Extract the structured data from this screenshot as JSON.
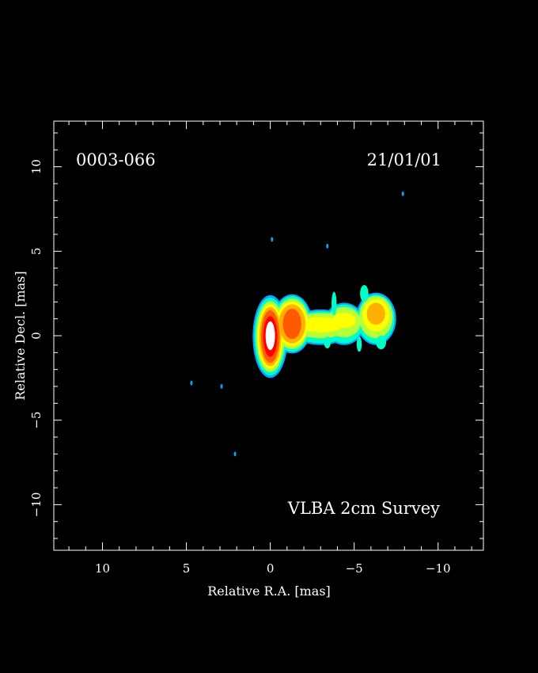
{
  "chart_data": {
    "type": "heatmap",
    "title": "",
    "source_label": "0003-066",
    "epoch_label": "21/01/01",
    "survey_label": "VLBA 2cm Survey",
    "xlabel": "Relative R.A. [mas]",
    "ylabel": "Relative Decl. [mas]",
    "xlim": [
      12.9,
      -12.7
    ],
    "ylim": [
      -12.7,
      12.7
    ],
    "x_reversed": true,
    "x_ticks": [
      {
        "value": 10,
        "label": "10"
      },
      {
        "value": 5,
        "label": "5"
      },
      {
        "value": 0,
        "label": "0"
      },
      {
        "value": -5,
        "label": "−5"
      },
      {
        "value": -10,
        "label": "−10"
      }
    ],
    "y_ticks": [
      {
        "value": 10,
        "label": "10"
      },
      {
        "value": 5,
        "label": "5"
      },
      {
        "value": 0,
        "label": "0"
      },
      {
        "value": -5,
        "label": "−5"
      },
      {
        "value": -10,
        "label": "−10"
      }
    ],
    "grid": false,
    "colormap": [
      "#00a8ff",
      "#00ffc8",
      "#b4ff3c",
      "#ffff00",
      "#ffb000",
      "#ff5a00",
      "#ff0000",
      "#ffffff"
    ],
    "components": [
      {
        "name": "core",
        "x": 0.0,
        "y": 0.0,
        "peak": 1.0
      },
      {
        "name": "inner-jet",
        "x": -1.3,
        "y": 0.7,
        "peak": 0.55
      },
      {
        "name": "jet",
        "x": -3.0,
        "y": 0.7,
        "peak": 0.35
      },
      {
        "name": "outer-jet",
        "x": -4.5,
        "y": 0.9,
        "peak": 0.3
      },
      {
        "name": "outer-knot",
        "x": -6.3,
        "y": 1.3,
        "peak": 0.45
      }
    ],
    "isolated_points": [
      {
        "x": -0.1,
        "y": 5.7
      },
      {
        "x": -3.4,
        "y": 5.3
      },
      {
        "x": -7.9,
        "y": 8.4
      },
      {
        "x": 4.7,
        "y": -2.8
      },
      {
        "x": 2.9,
        "y": -3.0
      },
      {
        "x": 2.1,
        "y": -7.0
      }
    ]
  }
}
